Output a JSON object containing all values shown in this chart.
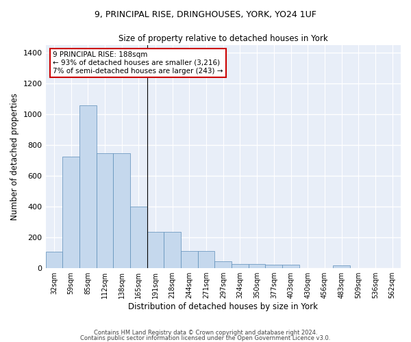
{
  "title_line1": "9, PRINCIPAL RISE, DRINGHOUSES, YORK, YO24 1UF",
  "title_line2": "Size of property relative to detached houses in York",
  "xlabel": "Distribution of detached houses by size in York",
  "ylabel": "Number of detached properties",
  "bar_labels": [
    "32sqm",
    "59sqm",
    "85sqm",
    "112sqm",
    "138sqm",
    "165sqm",
    "191sqm",
    "218sqm",
    "244sqm",
    "271sqm",
    "297sqm",
    "324sqm",
    "350sqm",
    "377sqm",
    "403sqm",
    "430sqm",
    "456sqm",
    "483sqm",
    "509sqm",
    "536sqm",
    "562sqm"
  ],
  "bar_values": [
    108,
    723,
    1057,
    748,
    748,
    400,
    238,
    238,
    113,
    113,
    45,
    28,
    28,
    22,
    22,
    0,
    0,
    18,
    0,
    0,
    0
  ],
  "bar_color": "#c5d8ed",
  "bar_edge_color": "#5b8db8",
  "background_color": "#e8eef8",
  "grid_color": "#ffffff",
  "ylim": [
    0,
    1450
  ],
  "yticks": [
    0,
    200,
    400,
    600,
    800,
    1000,
    1200,
    1400
  ],
  "property_line_x": 6.0,
  "annotation_text": "9 PRINCIPAL RISE: 188sqm\n← 93% of detached houses are smaller (3,216)\n7% of semi-detached houses are larger (243) →",
  "annotation_box_color": "#ffffff",
  "annotation_border_color": "#cc0000",
  "footer_line1": "Contains HM Land Registry data © Crown copyright and database right 2024.",
  "footer_line2": "Contains public sector information licensed under the Open Government Licence v3.0."
}
